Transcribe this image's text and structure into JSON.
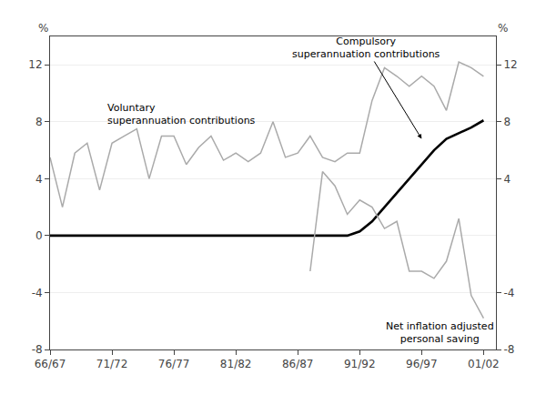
{
  "chart_data": {
    "type": "line",
    "x": [
      1966,
      1967,
      1968,
      1969,
      1970,
      1971,
      1972,
      1973,
      1974,
      1975,
      1976,
      1977,
      1978,
      1979,
      1980,
      1981,
      1982,
      1983,
      1984,
      1985,
      1986,
      1987,
      1988,
      1989,
      1990,
      1991,
      1992,
      1993,
      1994,
      1995,
      1996,
      1997,
      1998,
      1999,
      2000,
      2001
    ],
    "series": [
      {
        "color": "#aaaaaa",
        "values": [
          5.5,
          2.0,
          5.8,
          6.5,
          3.2,
          6.5,
          7.0,
          7.5,
          4.0,
          7.0,
          7.0,
          5.0,
          6.2,
          7.0,
          5.3,
          5.8,
          5.2,
          5.8,
          8.0,
          5.5,
          5.8,
          7.0,
          5.5,
          5.2,
          5.8,
          5.8,
          9.5,
          11.8,
          11.2,
          10.5,
          11.2,
          10.5,
          8.8,
          12.2,
          11.8,
          11.2
        ]
      },
      {
        "color": "#000000",
        "values": [
          0.0,
          0.0,
          0.0,
          0.0,
          0.0,
          0.0,
          0.0,
          0.0,
          0.0,
          0.0,
          0.0,
          0.0,
          0.0,
          0.0,
          0.0,
          0.0,
          0.0,
          0.0,
          0.0,
          0.0,
          0.0,
          0.0,
          0.0,
          0.0,
          0.0,
          0.3,
          1.0,
          2.0,
          3.0,
          4.0,
          5.0,
          6.0,
          6.8,
          7.2,
          7.6,
          8.1
        ]
      },
      {
        "color": "#aaaaaa",
        "values": [
          null,
          null,
          null,
          null,
          null,
          null,
          null,
          null,
          null,
          null,
          null,
          null,
          null,
          null,
          null,
          null,
          null,
          null,
          null,
          null,
          null,
          -2.5,
          4.5,
          3.5,
          1.5,
          2.5,
          2.0,
          0.5,
          1.0,
          -2.5,
          -2.5,
          -3.0,
          -1.8,
          1.2,
          -4.2,
          -5.8
        ]
      }
    ],
    "xlim": [
      1966,
      2002
    ],
    "xticks": [
      {
        "value": 1966,
        "label": "66/67"
      },
      {
        "value": 1971,
        "label": "71/72"
      },
      {
        "value": 1976,
        "label": "76/77"
      },
      {
        "value": 1981,
        "label": "81/82"
      },
      {
        "value": 1986,
        "label": "86/87"
      },
      {
        "value": 1991,
        "label": "91/92"
      },
      {
        "value": 1996,
        "label": "96/97"
      },
      {
        "value": 2001,
        "label": "01/02"
      }
    ],
    "ylim": [
      -8,
      14
    ],
    "yticks": [
      -8,
      -4,
      0,
      4,
      8,
      12
    ],
    "y2lim": [
      -8,
      14
    ],
    "y2ticks": [
      -8,
      -4,
      4,
      8,
      12
    ],
    "ylabel": "%",
    "y2label": "%",
    "grid": true,
    "annotations": [
      {
        "text": "Voluntary\nsuperannuation contributions",
        "x": 1970.5,
        "y": 9.5
      },
      {
        "text": "Compulsory\nsuperannuation contributions",
        "x": 1991.5,
        "y": 13.2,
        "arrow_x": 1996,
        "arrow_y": 6.8
      },
      {
        "text": "Net inflation adjusted\npersonal saving",
        "x": 1997.5,
        "y": -5.8
      }
    ]
  }
}
